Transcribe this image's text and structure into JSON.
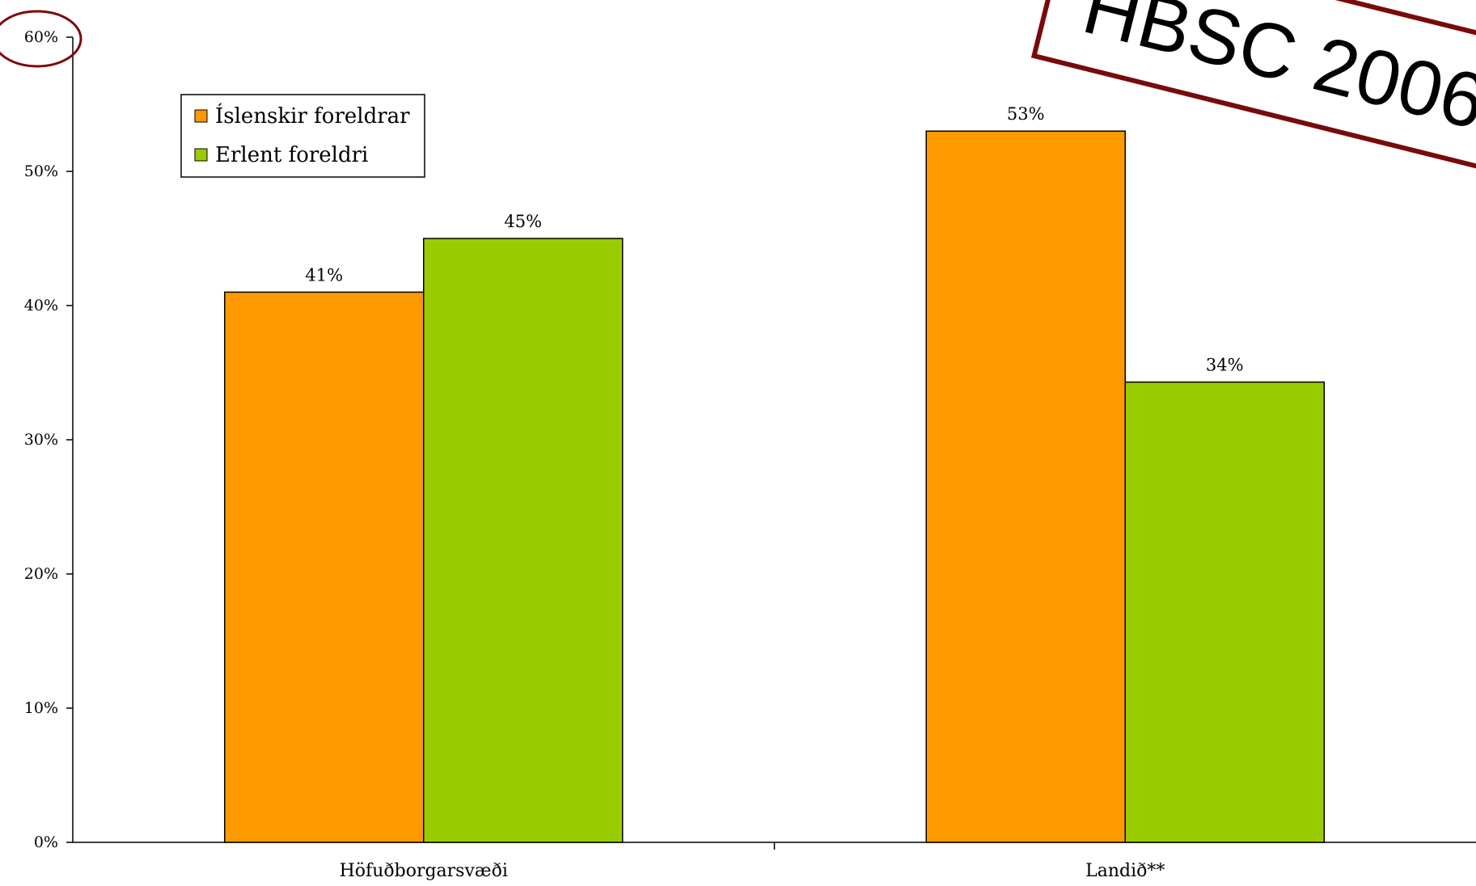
{
  "chart_data": {
    "type": "bar",
    "categories": [
      "Höfuðborgarsvæði",
      "Landið**"
    ],
    "series": [
      {
        "name": "Íslenskir foreldrar",
        "color": "#FF9900",
        "values": [
          41,
          53
        ]
      },
      {
        "name": "Erlent foreldri",
        "color": "#99CC00",
        "values": [
          45,
          34.3
        ]
      }
    ],
    "data_labels": [
      [
        "41%",
        "53%"
      ],
      [
        "45%",
        "34%"
      ]
    ],
    "ylim": [
      0,
      60
    ],
    "yticks": [
      0,
      10,
      20,
      30,
      40,
      50,
      60
    ],
    "ytick_labels": [
      "0%",
      "10%",
      "20%",
      "30%",
      "40%",
      "50%",
      "60%"
    ],
    "title": "",
    "xlabel": "",
    "ylabel": "",
    "grid": false,
    "legend_placement": "top-left",
    "annotation": {
      "stamp_text": "HBSC 2006",
      "stamp_color": "#7A0A0A",
      "circled_tick": "60%"
    }
  }
}
